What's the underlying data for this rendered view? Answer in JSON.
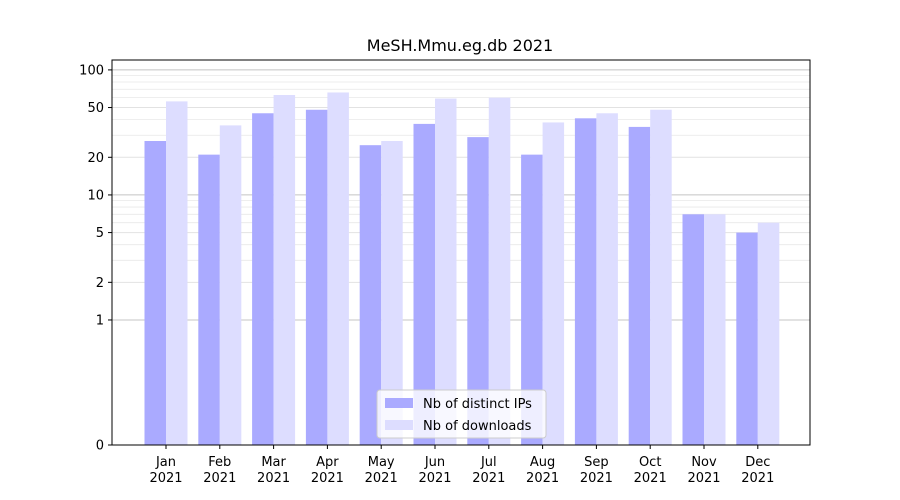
{
  "chart_data": {
    "type": "bar",
    "title": "MeSH.Mmu.eg.db 2021",
    "xlabel": "",
    "ylabel": "",
    "yscale": "symlog",
    "ylim": [
      0,
      120
    ],
    "grid": "horizontal",
    "legend_placement": "bottom-center",
    "categories": [
      [
        "Jan",
        "2021"
      ],
      [
        "Feb",
        "2021"
      ],
      [
        "Mar",
        "2021"
      ],
      [
        "Apr",
        "2021"
      ],
      [
        "May",
        "2021"
      ],
      [
        "Jun",
        "2021"
      ],
      [
        "Jul",
        "2021"
      ],
      [
        "Aug",
        "2021"
      ],
      [
        "Sep",
        "2021"
      ],
      [
        "Oct",
        "2021"
      ],
      [
        "Nov",
        "2021"
      ],
      [
        "Dec",
        "2021"
      ]
    ],
    "yticks": [
      "0",
      "1",
      "2",
      "5",
      "10",
      "20",
      "50",
      "100"
    ],
    "series": [
      {
        "name": "Nb of distinct IPs",
        "color": "#aaaaff",
        "values": [
          27,
          21,
          45,
          48,
          25,
          37,
          29,
          21,
          41,
          35,
          7,
          5
        ]
      },
      {
        "name": "Nb of downloads",
        "color": "#ddddff",
        "values": [
          56,
          36,
          63,
          66,
          27,
          59,
          60,
          38,
          45,
          48,
          7,
          6
        ]
      }
    ]
  }
}
